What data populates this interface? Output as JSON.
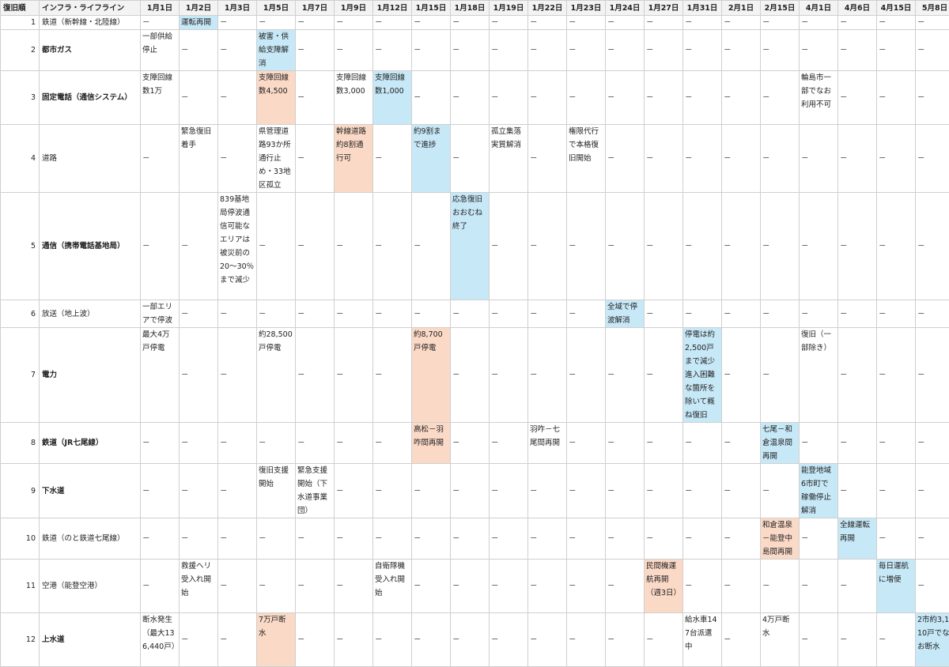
{
  "header": {
    "no_label": "復旧順",
    "name_label": "インフラ・ライフライン",
    "dates": [
      "1月1日",
      "1月2日",
      "1月3日",
      "1月5日",
      "1月7日",
      "1月9日",
      "1月12日",
      "1月15日",
      "1月18日",
      "1月19日",
      "1月22日",
      "1月23日",
      "1月24日",
      "1月27日",
      "1月31日",
      "2月1日",
      "2月15日",
      "4月1日",
      "4月6日",
      "4月15日",
      "5月8日"
    ]
  },
  "highlight_colors": {
    "blue": "#c7e8f7",
    "peach": "#fbd9c7"
  },
  "rows": [
    {
      "no": "1",
      "name": "鉄道（新幹線・北陸線）",
      "bold": false,
      "height": 18,
      "cells": [
        {
          "t": "－"
        },
        {
          "t": "運転再開",
          "hl": "blue"
        },
        {
          "t": "－"
        },
        {
          "t": "－"
        },
        {
          "t": "－"
        },
        {
          "t": "－"
        },
        {
          "t": "－"
        },
        {
          "t": "－"
        },
        {
          "t": "－"
        },
        {
          "t": "－"
        },
        {
          "t": "－"
        },
        {
          "t": "－"
        },
        {
          "t": "－"
        },
        {
          "t": "－"
        },
        {
          "t": "－"
        },
        {
          "t": "－"
        },
        {
          "t": "－"
        },
        {
          "t": "－"
        },
        {
          "t": "－"
        },
        {
          "t": "－"
        },
        {
          "t": "－"
        }
      ]
    },
    {
      "no": "2",
      "name": "都市ガス",
      "bold": true,
      "height": 51,
      "cells": [
        {
          "t": "一部供給停止"
        },
        {
          "t": "－"
        },
        {
          "t": "－"
        },
        {
          "t": "被害・供給支障解消",
          "hl": "blue"
        },
        {
          "t": "－"
        },
        {
          "t": "－"
        },
        {
          "t": "－"
        },
        {
          "t": "－"
        },
        {
          "t": "－"
        },
        {
          "t": "－"
        },
        {
          "t": "－"
        },
        {
          "t": "－"
        },
        {
          "t": "－"
        },
        {
          "t": "－"
        },
        {
          "t": "－"
        },
        {
          "t": "－"
        },
        {
          "t": "－"
        },
        {
          "t": "－"
        },
        {
          "t": "－"
        },
        {
          "t": "－"
        },
        {
          "t": "－"
        }
      ]
    },
    {
      "no": "3",
      "name": "固定電話（通信システム）",
      "bold": true,
      "height": 68,
      "cells": [
        {
          "t": "支障回線数1万"
        },
        {
          "t": "－"
        },
        {
          "t": "－"
        },
        {
          "t": "支障回線数4,500",
          "hl": "peach"
        },
        {
          "t": "－"
        },
        {
          "t": "支障回線数3,000"
        },
        {
          "t": "支障回線数1,000",
          "hl": "blue"
        },
        {
          "t": "－"
        },
        {
          "t": "－"
        },
        {
          "t": "－"
        },
        {
          "t": "－"
        },
        {
          "t": "－"
        },
        {
          "t": "－"
        },
        {
          "t": "－"
        },
        {
          "t": "－"
        },
        {
          "t": "－"
        },
        {
          "t": "－"
        },
        {
          "t": "輪島市一部でなお利用不可"
        },
        {
          "t": "－"
        },
        {
          "t": "－"
        },
        {
          "t": "－"
        }
      ]
    },
    {
      "no": "4",
      "name": "道路",
      "bold": false,
      "height": 85,
      "cells": [
        {
          "t": "－"
        },
        {
          "t": "緊急復旧着手"
        },
        {
          "t": "－"
        },
        {
          "t": "県管理道路93か所通行止め・33地区孤立"
        },
        {
          "t": "－"
        },
        {
          "t": "幹線道路約8割通行可",
          "hl": "peach"
        },
        {
          "t": "－"
        },
        {
          "t": "約9割まで進捗",
          "hl": "blue"
        },
        {
          "t": "－"
        },
        {
          "t": "孤立集落実質解消"
        },
        {
          "t": "－"
        },
        {
          "t": "権限代行で本格復旧開始"
        },
        {
          "t": "－"
        },
        {
          "t": "－"
        },
        {
          "t": "－"
        },
        {
          "t": "－"
        },
        {
          "t": "－"
        },
        {
          "t": "－"
        },
        {
          "t": "－"
        },
        {
          "t": "－"
        },
        {
          "t": "－"
        }
      ]
    },
    {
      "no": "5",
      "name": "通信（携帯電話基地局）",
      "bold": true,
      "height": 136,
      "cells": [
        {
          "t": "－"
        },
        {
          "t": "－"
        },
        {
          "t": "839基地局停波通信可能なエリアは被災前の20～30％まで減少"
        },
        {
          "t": "－"
        },
        {
          "t": "－"
        },
        {
          "t": "－"
        },
        {
          "t": "－"
        },
        {
          "t": "－"
        },
        {
          "t": "応急復旧おおむね終了",
          "hl": "blue"
        },
        {
          "t": "－"
        },
        {
          "t": "－"
        },
        {
          "t": "－"
        },
        {
          "t": "－"
        },
        {
          "t": "－"
        },
        {
          "t": "－"
        },
        {
          "t": "－"
        },
        {
          "t": "－"
        },
        {
          "t": "－"
        },
        {
          "t": "－"
        },
        {
          "t": "－"
        },
        {
          "t": "－"
        }
      ]
    },
    {
      "no": "6",
      "name": "放送（地上波）",
      "bold": false,
      "height": 34,
      "cells": [
        {
          "t": "一部エリアで停波"
        },
        {
          "t": "－"
        },
        {
          "t": "－"
        },
        {
          "t": "－"
        },
        {
          "t": "－"
        },
        {
          "t": "－"
        },
        {
          "t": "－"
        },
        {
          "t": "－"
        },
        {
          "t": "－"
        },
        {
          "t": "－"
        },
        {
          "t": "－"
        },
        {
          "t": "－"
        },
        {
          "t": "全域で停波解消",
          "hl": "blue"
        },
        {
          "t": "－"
        },
        {
          "t": "－"
        },
        {
          "t": "－"
        },
        {
          "t": "－"
        },
        {
          "t": "－"
        },
        {
          "t": "－"
        },
        {
          "t": "－"
        },
        {
          "t": "－"
        }
      ]
    },
    {
      "no": "7",
      "name": "電力",
      "bold": true,
      "height": 119,
      "cells": [
        {
          "t": "最大4万戸停電"
        },
        {
          "t": "－"
        },
        {
          "t": "－"
        },
        {
          "t": "約28,500戸停電"
        },
        {
          "t": "－"
        },
        {
          "t": "－"
        },
        {
          "t": "－"
        },
        {
          "t": "約8,700戸停電",
          "hl": "peach"
        },
        {
          "t": "－"
        },
        {
          "t": "－"
        },
        {
          "t": "－"
        },
        {
          "t": "－"
        },
        {
          "t": "－"
        },
        {
          "t": "－"
        },
        {
          "t": "停電は約2,500戸まで減少進入困難な箇所を除いて概ね復旧",
          "hl": "blue"
        },
        {
          "t": "－"
        },
        {
          "t": "－"
        },
        {
          "t": "復旧（一部除き）"
        },
        {
          "t": "－"
        },
        {
          "t": "－"
        },
        {
          "t": "－"
        }
      ]
    },
    {
      "no": "8",
      "name": "鉄道（JR七尾線）",
      "bold": true,
      "height": 51,
      "cells": [
        {
          "t": "－"
        },
        {
          "t": "－"
        },
        {
          "t": "－"
        },
        {
          "t": "－"
        },
        {
          "t": "－"
        },
        {
          "t": "－"
        },
        {
          "t": "－"
        },
        {
          "t": "高松－羽咋間再開",
          "hl": "peach"
        },
        {
          "t": "－"
        },
        {
          "t": "－"
        },
        {
          "t": "羽咋－七尾間再開"
        },
        {
          "t": "－"
        },
        {
          "t": "－"
        },
        {
          "t": "－"
        },
        {
          "t": "－"
        },
        {
          "t": "－"
        },
        {
          "t": "七尾－和倉温泉間再開",
          "hl": "blue"
        },
        {
          "t": "－"
        },
        {
          "t": "－"
        },
        {
          "t": "－"
        },
        {
          "t": "－"
        }
      ]
    },
    {
      "no": "9",
      "name": "下水道",
      "bold": true,
      "height": 68,
      "cells": [
        {
          "t": "－"
        },
        {
          "t": "－"
        },
        {
          "t": "－"
        },
        {
          "t": "復旧支援開始"
        },
        {
          "t": "緊急支援開始（下水道事業団）"
        },
        {
          "t": "－"
        },
        {
          "t": "－"
        },
        {
          "t": "－"
        },
        {
          "t": "－"
        },
        {
          "t": "－"
        },
        {
          "t": "－"
        },
        {
          "t": "－"
        },
        {
          "t": "－"
        },
        {
          "t": "－"
        },
        {
          "t": "－"
        },
        {
          "t": "－"
        },
        {
          "t": "－"
        },
        {
          "t": "能登地域6市町で稼働停止解消",
          "hl": "blue"
        },
        {
          "t": "－"
        },
        {
          "t": "－"
        },
        {
          "t": "－"
        }
      ]
    },
    {
      "no": "10",
      "name": "鉄道（のと鉄道七尾線）",
      "bold": false,
      "height": 51,
      "cells": [
        {
          "t": "－"
        },
        {
          "t": "－"
        },
        {
          "t": "－"
        },
        {
          "t": "－"
        },
        {
          "t": "－"
        },
        {
          "t": "－"
        },
        {
          "t": "－"
        },
        {
          "t": "－"
        },
        {
          "t": "－"
        },
        {
          "t": "－"
        },
        {
          "t": "－"
        },
        {
          "t": "－"
        },
        {
          "t": "－"
        },
        {
          "t": "－"
        },
        {
          "t": "－"
        },
        {
          "t": "－"
        },
        {
          "t": "和倉温泉－能登中島間再開",
          "hl": "peach"
        },
        {
          "t": "－"
        },
        {
          "t": "全線運転再開",
          "hl": "blue"
        },
        {
          "t": "－"
        },
        {
          "t": "－"
        }
      ]
    },
    {
      "no": "11",
      "name": "空港（能登空港）",
      "bold": false,
      "height": 68,
      "cells": [
        {
          "t": "－"
        },
        {
          "t": "救援ヘリ受入れ開始"
        },
        {
          "t": "－"
        },
        {
          "t": "－"
        },
        {
          "t": "－"
        },
        {
          "t": "－"
        },
        {
          "t": "自衛隊機受入れ開始"
        },
        {
          "t": "－"
        },
        {
          "t": "－"
        },
        {
          "t": "－"
        },
        {
          "t": "－"
        },
        {
          "t": "－"
        },
        {
          "t": "－"
        },
        {
          "t": "民間機運航再開（週3日）",
          "hl": "peach"
        },
        {
          "t": "－"
        },
        {
          "t": "－"
        },
        {
          "t": "－"
        },
        {
          "t": "－"
        },
        {
          "t": "－"
        },
        {
          "t": "毎日運航に増便",
          "hl": "blue"
        },
        {
          "t": "－"
        }
      ]
    },
    {
      "no": "12",
      "name": "上水道",
      "bold": true,
      "height": 68,
      "cells": [
        {
          "t": "断水発生（最大136,440戸）"
        },
        {
          "t": "－"
        },
        {
          "t": "－"
        },
        {
          "t": "7万戸断水",
          "hl": "peach"
        },
        {
          "t": "－"
        },
        {
          "t": "－"
        },
        {
          "t": "－"
        },
        {
          "t": "－"
        },
        {
          "t": "－"
        },
        {
          "t": "－"
        },
        {
          "t": "－"
        },
        {
          "t": "－"
        },
        {
          "t": "－"
        },
        {
          "t": "－"
        },
        {
          "t": "給水車147台派遣中"
        },
        {
          "t": "－"
        },
        {
          "t": "4万戸断水"
        },
        {
          "t": "－"
        },
        {
          "t": "－"
        },
        {
          "t": "－"
        },
        {
          "t": "2市約3,110戸でなお断水",
          "hl": "blue"
        }
      ]
    }
  ]
}
